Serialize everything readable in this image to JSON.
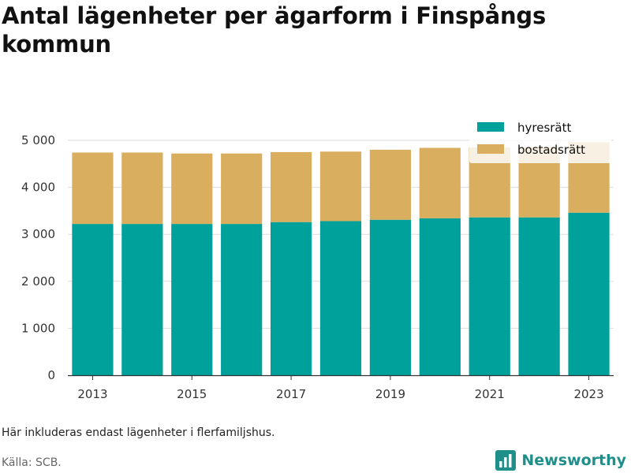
{
  "title": "Antal lägenheter per ägarform i Finspångs kommun",
  "note": "Här inkluderas endast lägenheter i flerfamiljshus.",
  "source": "Källa: SCB.",
  "brand": {
    "name": "Newsworthy",
    "icon": "newsworthy-logo-icon",
    "color": "#1f8f8a"
  },
  "chart_data": {
    "type": "bar",
    "stacked": true,
    "categories": [
      2013,
      2014,
      2015,
      2016,
      2017,
      2018,
      2019,
      2020,
      2021,
      2022,
      2023
    ],
    "x_tick_labels": [
      "2013",
      "2015",
      "2017",
      "2019",
      "2021",
      "2023"
    ],
    "series": [
      {
        "name": "hyresrätt",
        "color": "#00a19a",
        "values": [
          3220,
          3220,
          3220,
          3220,
          3260,
          3280,
          3310,
          3340,
          3360,
          3360,
          3460
        ]
      },
      {
        "name": "bostadsrätt",
        "color": "#d9ae5f",
        "values": [
          1520,
          1520,
          1500,
          1500,
          1490,
          1480,
          1490,
          1500,
          1490,
          1500,
          1500
        ]
      }
    ],
    "ylim": [
      0,
      5000
    ],
    "y_ticks": [
      0,
      1000,
      2000,
      3000,
      4000,
      5000
    ],
    "y_tick_labels": [
      "0",
      "1 000",
      "2 000",
      "3 000",
      "4 000",
      "5 000"
    ],
    "grid": true,
    "legend_position": "top-right"
  }
}
